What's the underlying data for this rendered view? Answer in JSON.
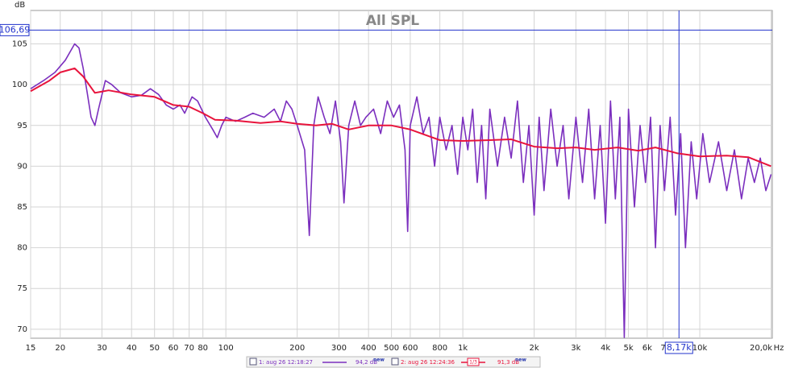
{
  "chart_data": {
    "type": "line",
    "title": "All SPL",
    "y_label": "dB",
    "x_unit": "Hz",
    "log_x": true,
    "grid": true,
    "xlim": [
      15,
      20230
    ],
    "ylim": [
      68.9,
      109.1
    ],
    "yticks": [
      70,
      75,
      80,
      85,
      90,
      95,
      100,
      105
    ],
    "xticks": [
      15,
      20,
      30,
      40,
      50,
      60,
      70,
      80,
      100,
      200,
      300,
      400,
      500,
      600,
      800,
      {
        "value": 1000,
        "label": "1k"
      },
      {
        "value": 2000,
        "label": "2k"
      },
      {
        "value": 3000,
        "label": "3k"
      },
      {
        "value": 4000,
        "label": "4k"
      },
      {
        "value": 5000,
        "label": "5k"
      },
      {
        "value": 6000,
        "label": "6k"
      },
      {
        "value": 7000,
        "label": "7"
      },
      {
        "value": 10000,
        "label": "10k"
      },
      {
        "value": 20000,
        "label": "20,0k"
      }
    ],
    "cursor_x": {
      "value": 8170,
      "label": "8,17k"
    },
    "cursor_y": {
      "value": 106.69,
      "label": "106,69"
    },
    "badge": "new",
    "series": [
      {
        "name": "1: aug 26 12:18:27",
        "level": "94,2 dB",
        "color": "#7b2fbe",
        "x": [
          15,
          17,
          19,
          21,
          23,
          24,
          25,
          26,
          27,
          28,
          29,
          31,
          33,
          36,
          40,
          44,
          48,
          52,
          56,
          60,
          64,
          67,
          72,
          76,
          82,
          88,
          92,
          96,
          100,
          110,
          120,
          130,
          145,
          160,
          170,
          180,
          190,
          200,
          215,
          225,
          235,
          245,
          260,
          275,
          290,
          305,
          315,
          330,
          350,
          370,
          390,
          420,
          450,
          480,
          510,
          540,
          570,
          585,
          600,
          640,
          680,
          720,
          760,
          800,
          850,
          900,
          950,
          1000,
          1050,
          1100,
          1150,
          1200,
          1250,
          1300,
          1400,
          1500,
          1600,
          1700,
          1800,
          1900,
          2000,
          2100,
          2200,
          2350,
          2500,
          2650,
          2800,
          3000,
          3200,
          3400,
          3600,
          3800,
          4000,
          4200,
          4400,
          4600,
          4800,
          5000,
          5300,
          5600,
          5900,
          6200,
          6500,
          6800,
          7100,
          7500,
          7900,
          8300,
          8700,
          9200,
          9700,
          10300,
          11000,
          12000,
          13000,
          14000,
          15000,
          16000,
          17000,
          18000,
          19000,
          20000
        ],
        "values": [
          99.5,
          100.5,
          101.5,
          103,
          105,
          104.5,
          102,
          99,
          96,
          95,
          97,
          100.5,
          100,
          99,
          98.5,
          98.7,
          99.5,
          98.8,
          97.5,
          97,
          97.5,
          96.5,
          98.5,
          98,
          96,
          94.5,
          93.5,
          95,
          96,
          95.5,
          96,
          96.5,
          96,
          97,
          95.5,
          98,
          97,
          95,
          92,
          81.5,
          95,
          98.5,
          96,
          94,
          98,
          93,
          85.5,
          95,
          98,
          95,
          96,
          97,
          94,
          98,
          96,
          97.5,
          92,
          82,
          95,
          98.5,
          94,
          96,
          90,
          96,
          92,
          95,
          89,
          96,
          92,
          97,
          88,
          95,
          86,
          97,
          90,
          96,
          91,
          98,
          88,
          95,
          84,
          96,
          87,
          97,
          90,
          95,
          86,
          96,
          88,
          97,
          86,
          95,
          83,
          98,
          86,
          96,
          69,
          97,
          85,
          95,
          88,
          96,
          80,
          95,
          87,
          96,
          84,
          94,
          80,
          93,
          86,
          94,
          88,
          93,
          87,
          92,
          86,
          91,
          88,
          91,
          87,
          89
        ]
      },
      {
        "name": "2: aug 26 12:24:36",
        "level": "91,3 dB",
        "smoothing": "1/3",
        "color": "#e8143c",
        "x": [
          15,
          18,
          20,
          23,
          25,
          28,
          32,
          40,
          50,
          60,
          70,
          80,
          90,
          110,
          140,
          170,
          200,
          240,
          280,
          330,
          400,
          500,
          600,
          700,
          800,
          1000,
          1300,
          1600,
          2000,
          2500,
          3000,
          3600,
          4500,
          5500,
          6500,
          8000,
          10000,
          13000,
          16000,
          20000
        ],
        "values": [
          99.2,
          100.5,
          101.5,
          102,
          101,
          99,
          99.3,
          98.8,
          98.5,
          97.5,
          97.3,
          96.5,
          95.7,
          95.6,
          95.3,
          95.5,
          95.2,
          95,
          95.2,
          94.5,
          95,
          95,
          94.5,
          93.8,
          93.2,
          93.1,
          93.2,
          93.3,
          92.4,
          92.2,
          92.3,
          92,
          92.3,
          91.9,
          92.3,
          91.6,
          91.2,
          91.3,
          91.1,
          90
        ]
      }
    ]
  }
}
